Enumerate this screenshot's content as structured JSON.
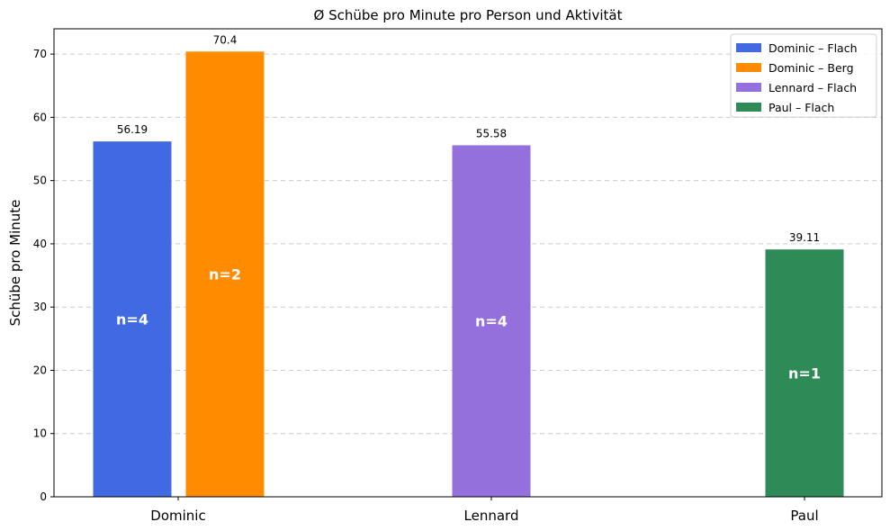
{
  "chart_data": {
    "type": "bar",
    "title": "Ø Schübe pro Minute pro Person und Aktivität",
    "xlabel": "",
    "ylabel": "Schübe pro Minute",
    "ylim": [
      0,
      74
    ],
    "yticks": [
      0,
      10,
      20,
      30,
      40,
      50,
      60,
      70
    ],
    "grid": "y-dashed",
    "legend_position": "top-right",
    "categories": [
      "Dominic",
      "Lennard",
      "Paul"
    ],
    "bars": [
      {
        "series": "Dominic – Flach",
        "category": "Dominic",
        "value": 56.19,
        "value_label": "56.19",
        "n_label": "n=4",
        "color": "#4169e1"
      },
      {
        "series": "Dominic – Berg",
        "category": "Dominic",
        "value": 70.4,
        "value_label": "70.4",
        "n_label": "n=2",
        "color": "#ff8c00"
      },
      {
        "series": "Lennard – Flach",
        "category": "Lennard",
        "value": 55.58,
        "value_label": "55.58",
        "n_label": "n=4",
        "color": "#9370db"
      },
      {
        "series": "Paul – Flach",
        "category": "Paul",
        "value": 39.11,
        "value_label": "39.11",
        "n_label": "n=1",
        "color": "#2e8b57"
      }
    ],
    "legend": [
      {
        "label": "Dominic – Flach",
        "color": "#4169e1"
      },
      {
        "label": "Dominic – Berg",
        "color": "#ff8c00"
      },
      {
        "label": "Lennard – Flach",
        "color": "#9370db"
      },
      {
        "label": "Paul – Flach",
        "color": "#2e8b57"
      }
    ]
  }
}
